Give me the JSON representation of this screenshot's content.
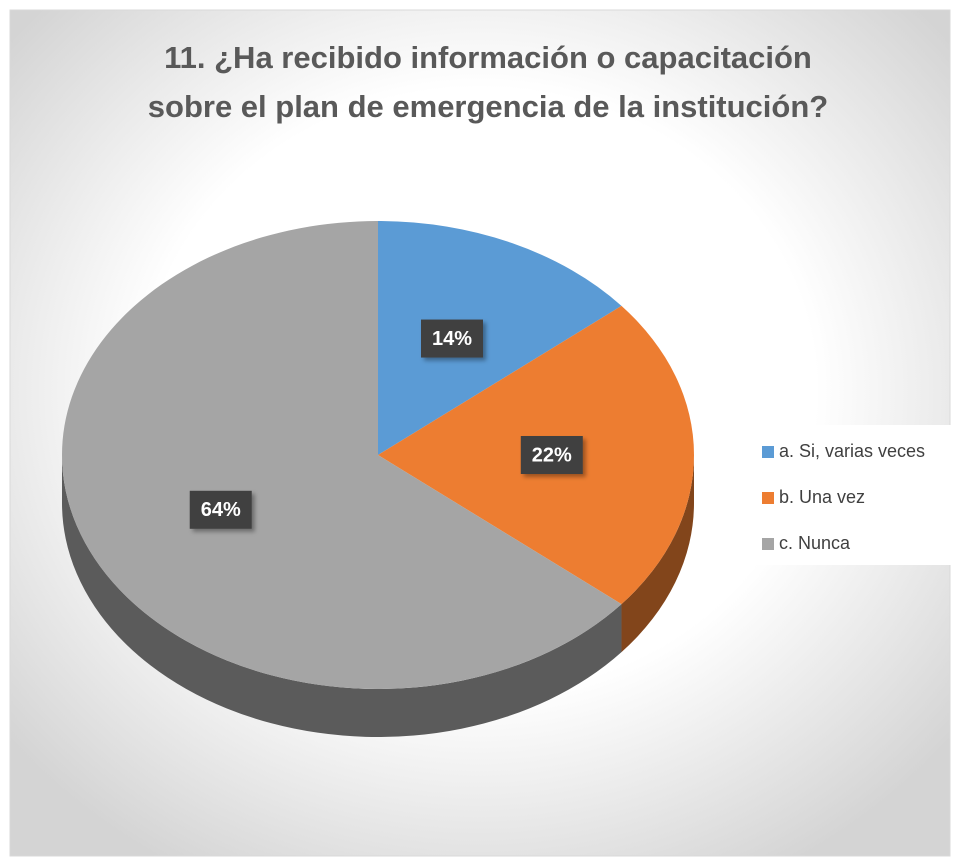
{
  "chart_data": {
    "type": "pie",
    "title": [
      "11. ¿Ha recibido información o capacitación",
      "sobre el plan de emergencia de la institución?"
    ],
    "categories": [
      "a. Si, varias veces",
      "b. Una vez",
      "c. Nunca"
    ],
    "values": [
      14,
      22,
      64
    ],
    "value_labels": [
      "14%",
      "22%",
      "64%"
    ],
    "colors": [
      "#5b9bd5",
      "#ed7d31",
      "#a5a5a5"
    ],
    "legend": "right"
  }
}
